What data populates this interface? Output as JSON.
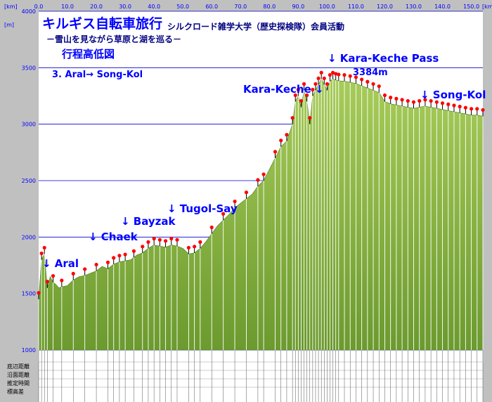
{
  "chart_data": {
    "type": "area",
    "title": "キルギス自転車旅行",
    "title_org": "シルクロード雑学大学（歴史探検隊）会員活動",
    "subtitle": "－雪山を見ながら草原と湖を巡る－",
    "caption": "行程高低図",
    "segment": "3. Aral→ Song-Kol",
    "xunit": "[km]",
    "xunit_right": "[km]",
    "yunit": "[m]",
    "xlim": [
      0,
      154
    ],
    "ylim": [
      1000,
      4000
    ],
    "xticks": [
      "0.0",
      "10.0",
      "20.0",
      "30.0",
      "40.0",
      "50.0",
      "60.0",
      "70.0",
      "80.0",
      "90.0",
      "100.0",
      "110.0",
      "120.0",
      "130.0",
      "140.0",
      "150.0"
    ],
    "yticks": [
      "1000",
      "1500",
      "2000",
      "2500",
      "3000",
      "3500",
      "4000"
    ],
    "grid": true,
    "fill_color": "#6b9a2e",
    "fill_light": "#a8cc5a",
    "marker_color": "#ff0000",
    "accent_color": "#0000ff",
    "x": [
      0,
      1,
      2,
      3,
      4,
      5,
      6,
      7,
      8,
      10,
      12,
      14,
      16,
      18,
      20,
      22,
      24,
      26,
      28,
      30,
      32,
      34,
      36,
      38,
      40,
      42,
      44,
      46,
      48,
      50,
      52,
      54,
      56,
      58,
      60,
      62,
      64,
      66,
      68,
      70,
      72,
      74,
      76,
      78,
      80,
      82,
      84,
      86,
      88,
      89,
      90,
      91,
      92,
      93,
      94,
      95,
      96,
      97,
      98,
      99,
      100,
      101,
      102,
      103,
      104,
      106,
      108,
      110,
      112,
      114,
      116,
      118,
      120,
      122,
      124,
      126,
      128,
      130,
      132,
      134,
      136,
      138,
      140,
      142,
      144,
      146,
      148,
      150,
      152,
      154
    ],
    "y": [
      1450,
      1800,
      1850,
      1550,
      1650,
      1600,
      1580,
      1550,
      1560,
      1570,
      1620,
      1650,
      1660,
      1680,
      1700,
      1740,
      1720,
      1760,
      1780,
      1790,
      1800,
      1840,
      1860,
      1900,
      1930,
      1920,
      1910,
      1930,
      1920,
      1900,
      1850,
      1860,
      1900,
      1960,
      2030,
      2100,
      2150,
      2200,
      2260,
      2300,
      2340,
      2380,
      2450,
      2500,
      2600,
      2700,
      2800,
      2850,
      3000,
      3200,
      3250,
      3150,
      3300,
      3200,
      3000,
      3250,
      3300,
      3350,
      3400,
      3350,
      3300,
      3380,
      3400,
      3390,
      3384,
      3380,
      3370,
      3360,
      3340,
      3320,
      3300,
      3280,
      3200,
      3180,
      3170,
      3160,
      3150,
      3140,
      3150,
      3160,
      3150,
      3140,
      3130,
      3120,
      3110,
      3100,
      3090,
      3080,
      3080,
      3070
    ],
    "markers": [
      0,
      1,
      2,
      3,
      5,
      8,
      12,
      16,
      20,
      24,
      26,
      28,
      30,
      33,
      36,
      38,
      40,
      42,
      44,
      46,
      48,
      52,
      54,
      56,
      60,
      64,
      68,
      72,
      76,
      78,
      82,
      84,
      86,
      88,
      89,
      90,
      91,
      92,
      93,
      94,
      95,
      96,
      97,
      98,
      99,
      100,
      101,
      102,
      103,
      104,
      106,
      108,
      110,
      112,
      114,
      116,
      118,
      120,
      122,
      124,
      126,
      128,
      130,
      132,
      134,
      136,
      138,
      140,
      142,
      144,
      146,
      148,
      150,
      152,
      154
    ],
    "annotations": [
      {
        "text": "↓ Aral"
      },
      {
        "text": "↓ Chaek"
      },
      {
        "text": "↓ Bayzak"
      },
      {
        "text": "↓ Tugol-Say"
      },
      {
        "text": "Kara-Keche ↓"
      },
      {
        "text": "↓ Kara-Keche Pass"
      },
      {
        "text": "3384m"
      },
      {
        "text": "↓ Song-Kol"
      }
    ]
  },
  "table": {
    "row_labels": [
      "底辺距離",
      "沿面距離",
      "推定時間",
      "標高差"
    ]
  }
}
